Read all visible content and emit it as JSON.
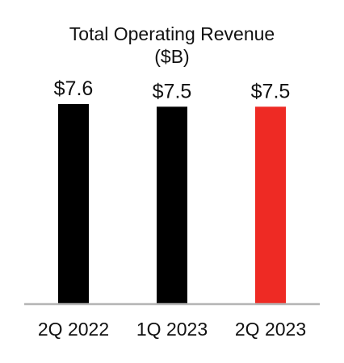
{
  "chart_data": {
    "type": "bar",
    "title": "Total Operating Revenue",
    "subtitle": "($B)",
    "categories": [
      "2Q 2022",
      "1Q 2023",
      "2Q 2023"
    ],
    "values": [
      7.6,
      7.5,
      7.5
    ],
    "value_labels": [
      "$7.6",
      "$7.5",
      "$7.5"
    ],
    "bar_colors": [
      "#000000",
      "#000000",
      "#ee2a24"
    ],
    "axis_color": "#b5b5b5",
    "ylim": [
      0,
      7.6
    ],
    "grid": false
  }
}
